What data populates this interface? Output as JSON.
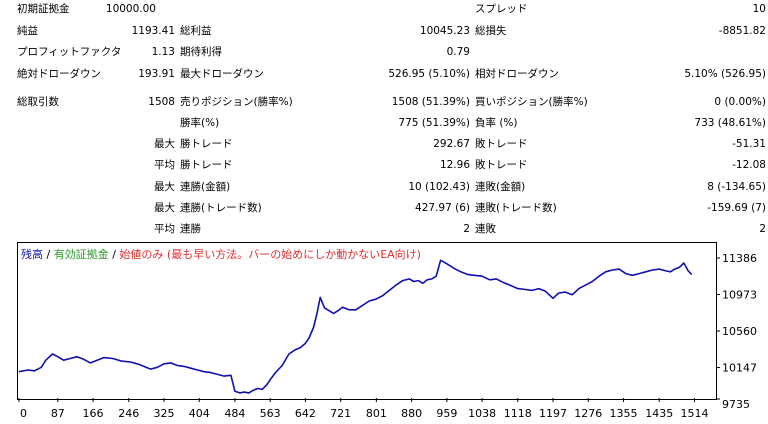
{
  "stats": {
    "initial_deposit_label": "初期証拠金",
    "initial_deposit_value": "10000.00",
    "spread_label": "スプレッド",
    "spread_value": "10",
    "net_profit_label": "純益",
    "net_profit_value": "1193.41",
    "gross_profit_label": "総利益",
    "gross_profit_value": "10045.23",
    "gross_loss_label": "総損失",
    "gross_loss_value": "-8851.82",
    "profit_factor_label": "プロフィットファクタ",
    "profit_factor_value": "1.13",
    "expected_payoff_label": "期待利得",
    "expected_payoff_value": "0.79",
    "abs_drawdown_label": "絶対ドローダウン",
    "abs_drawdown_value": "193.91",
    "max_drawdown_label": "最大ドローダウン",
    "max_drawdown_value": "526.95 (5.10%)",
    "rel_drawdown_label": "相対ドローダウン",
    "rel_drawdown_value": "5.10% (526.95)",
    "total_trades_label": "総取引数",
    "total_trades_value": "1508",
    "short_pos_label": "売りポジション(勝率%)",
    "short_pos_value": "1508 (51.39%)",
    "long_pos_label": "買いポジション(勝率%)",
    "long_pos_value": "0 (0.00%)",
    "win_pct_label": "勝率(%)",
    "win_pct_value": "775 (51.39%)",
    "loss_pct_label": "負率 (%)",
    "loss_pct_value": "733 (48.61%)",
    "max_prefix": "最大",
    "avg_prefix": "平均",
    "largest_win_label": "勝トレード",
    "largest_win_value": "292.67",
    "largest_loss_label": "敗トレード",
    "largest_loss_value": "-51.31",
    "avg_win_label": "勝トレード",
    "avg_win_value": "12.96",
    "avg_loss_label": "敗トレード",
    "avg_loss_value": "-12.08",
    "max_consec_wins_label": "連勝(金額)",
    "max_consec_wins_value": "10 (102.43)",
    "max_consec_losses_label": "連敗(金額)",
    "max_consec_losses_value": "8 (-134.65)",
    "max_consec_profit_label": "連勝(トレード数)",
    "max_consec_profit_value": "427.97 (6)",
    "max_consec_loss_label": "連敗(トレード数)",
    "max_consec_loss_value": "-159.69 (7)",
    "avg_consec_wins_label": "連勝",
    "avg_consec_wins_value": "2",
    "avg_consec_losses_label": "連敗",
    "avg_consec_losses_value": "2"
  },
  "legend": {
    "balance": "残高",
    "sep1": " / ",
    "equity": "有効証拠金",
    "sep2": " / ",
    "model_note": "始値のみ (最も早い方法。バーの始めにしか動かないEA向け)",
    "colors": {
      "balance": "#1010b0",
      "equity": "#2a9a2a",
      "note": "#e03030",
      "sep": "#000000"
    }
  },
  "chart_data": {
    "type": "line",
    "xlabel": "",
    "ylabel": "",
    "x_ticks": [
      "0",
      "87",
      "166",
      "246",
      "325",
      "404",
      "484",
      "563",
      "642",
      "721",
      "801",
      "880",
      "959",
      "1038",
      "1118",
      "1197",
      "1276",
      "1355",
      "1435",
      "1514"
    ],
    "y_ticks": [
      "11386",
      "10973",
      "10560",
      "10147",
      "9735"
    ],
    "xlim": [
      0,
      1560
    ],
    "ylim": [
      9735,
      11386
    ],
    "grid": false,
    "legend_position": "top-left",
    "series": [
      {
        "name": "残高",
        "color": "#1010b0",
        "x": [
          0,
          20,
          35,
          50,
          60,
          75,
          87,
          100,
          115,
          130,
          145,
          160,
          175,
          190,
          210,
          230,
          250,
          265,
          280,
          295,
          310,
          325,
          340,
          355,
          370,
          385,
          400,
          415,
          430,
          445,
          460,
          475,
          484,
          495,
          505,
          515,
          525,
          535,
          545,
          555,
          563,
          575,
          590,
          605,
          620,
          630,
          642,
          650,
          660,
          668,
          675,
          685,
          695,
          705,
          715,
          725,
          740,
          755,
          770,
          785,
          800,
          815,
          830,
          845,
          860,
          875,
          885,
          895,
          905,
          915,
          925,
          935,
          945,
          959,
          975,
          990,
          1005,
          1020,
          1038,
          1055,
          1070,
          1085,
          1100,
          1118,
          1135,
          1150,
          1165,
          1180,
          1197,
          1210,
          1225,
          1240,
          1255,
          1270,
          1285,
          1300,
          1315,
          1330,
          1345,
          1360,
          1375,
          1390,
          1405,
          1420,
          1435,
          1450,
          1460,
          1470,
          1480,
          1490,
          1500,
          1508
        ],
        "y": [
          10100,
          10120,
          10110,
          10150,
          10230,
          10300,
          10270,
          10230,
          10250,
          10270,
          10240,
          10200,
          10230,
          10260,
          10250,
          10220,
          10210,
          10190,
          10160,
          10130,
          10150,
          10190,
          10200,
          10170,
          10160,
          10140,
          10120,
          10100,
          10090,
          10070,
          10050,
          10060,
          9880,
          9860,
          9870,
          9860,
          9890,
          9910,
          9900,
          9950,
          10010,
          10090,
          10170,
          10300,
          10350,
          10370,
          10420,
          10480,
          10600,
          10760,
          10940,
          10820,
          10790,
          10760,
          10790,
          10830,
          10800,
          10800,
          10850,
          10900,
          10920,
          10960,
          11020,
          11080,
          11130,
          11150,
          11120,
          11130,
          11100,
          11140,
          11150,
          11180,
          11360,
          11320,
          11270,
          11230,
          11200,
          11190,
          11180,
          11140,
          11150,
          11110,
          11080,
          11040,
          11030,
          11020,
          11040,
          11010,
          10930,
          10990,
          11000,
          10970,
          11040,
          11080,
          11120,
          11180,
          11230,
          11250,
          11260,
          11210,
          11190,
          11210,
          11230,
          11250,
          11260,
          11240,
          11230,
          11260,
          11280,
          11330,
          11240,
          11200
        ]
      }
    ]
  }
}
